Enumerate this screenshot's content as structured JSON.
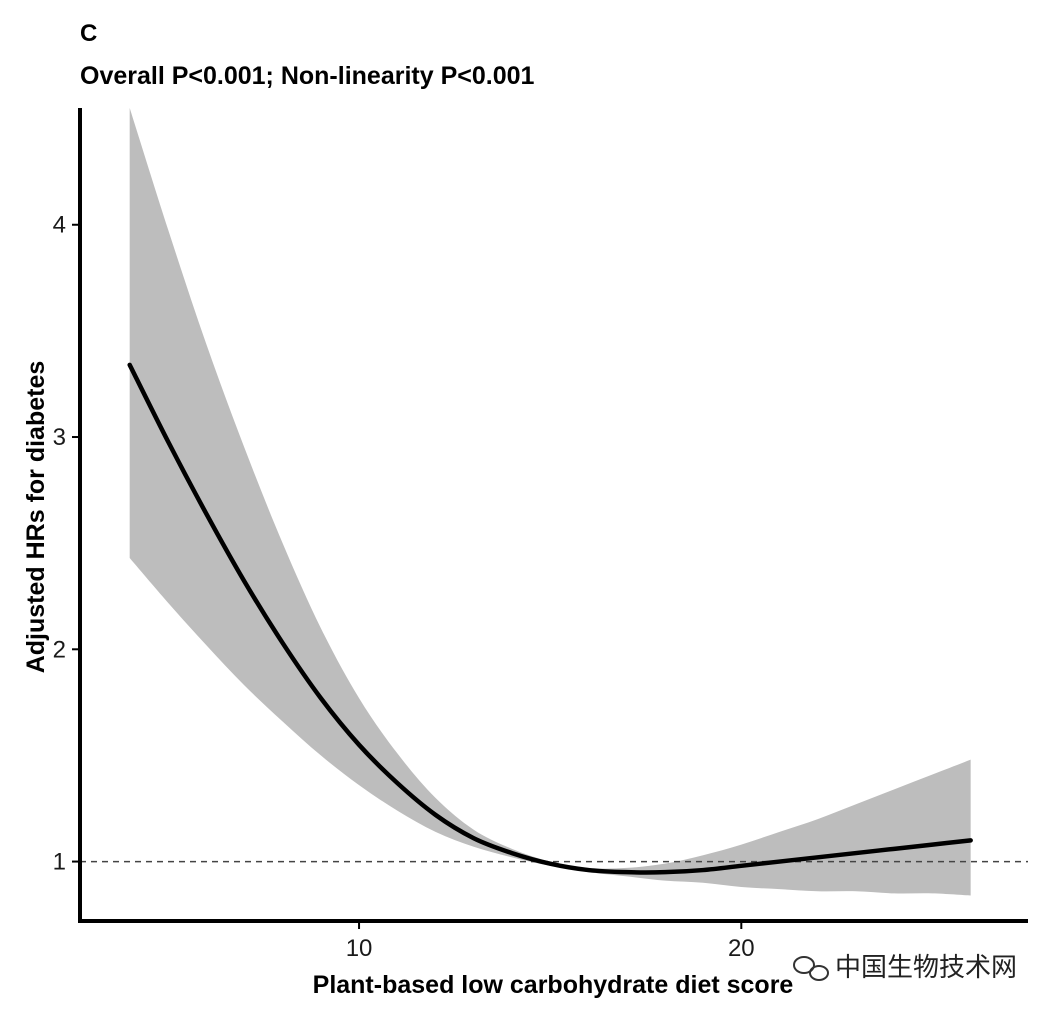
{
  "chart_data": {
    "type": "line",
    "panel_label": "C",
    "title": "Overall P<0.001; Non-linearity P<0.001",
    "xlabel": "Plant-based low carbohydrate diet score",
    "ylabel": "Adjusted HRs for diabetes",
    "xlim": [
      2.7,
      27.5
    ],
    "ylim": [
      0.72,
      4.55
    ],
    "x_ticks": [
      10,
      20
    ],
    "y_ticks": [
      1,
      2,
      3,
      4
    ],
    "reference_line": {
      "y": 1,
      "style": "dashed"
    },
    "series": [
      {
        "name": "Adjusted HR",
        "x": [
          4,
          5,
          6,
          7,
          8,
          9,
          10,
          11,
          12,
          13,
          14,
          15,
          16,
          17,
          18,
          19,
          20,
          21,
          22,
          23,
          24,
          25,
          26
        ],
        "y": [
          3.34,
          2.98,
          2.64,
          2.32,
          2.03,
          1.77,
          1.55,
          1.37,
          1.22,
          1.11,
          1.04,
          0.99,
          0.96,
          0.95,
          0.95,
          0.96,
          0.98,
          1.0,
          1.02,
          1.04,
          1.06,
          1.08,
          1.1
        ],
        "ci_lower": [
          2.43,
          2.22,
          2.02,
          1.83,
          1.66,
          1.5,
          1.36,
          1.24,
          1.14,
          1.07,
          1.02,
          0.98,
          0.95,
          0.93,
          0.91,
          0.9,
          0.88,
          0.87,
          0.86,
          0.86,
          0.85,
          0.85,
          0.84
        ],
        "ci_upper": [
          4.55,
          3.98,
          3.44,
          2.95,
          2.5,
          2.1,
          1.77,
          1.51,
          1.3,
          1.15,
          1.06,
          1.0,
          0.97,
          0.97,
          0.99,
          1.03,
          1.08,
          1.14,
          1.2,
          1.27,
          1.34,
          1.41,
          1.48
        ]
      }
    ],
    "colors": {
      "line": "#000000",
      "ci_band": "#bdbdbd",
      "axis": "#000000",
      "reference": "#444444"
    }
  },
  "watermark": {
    "text": "中国生物技术网",
    "icon": "wechat-icon"
  }
}
